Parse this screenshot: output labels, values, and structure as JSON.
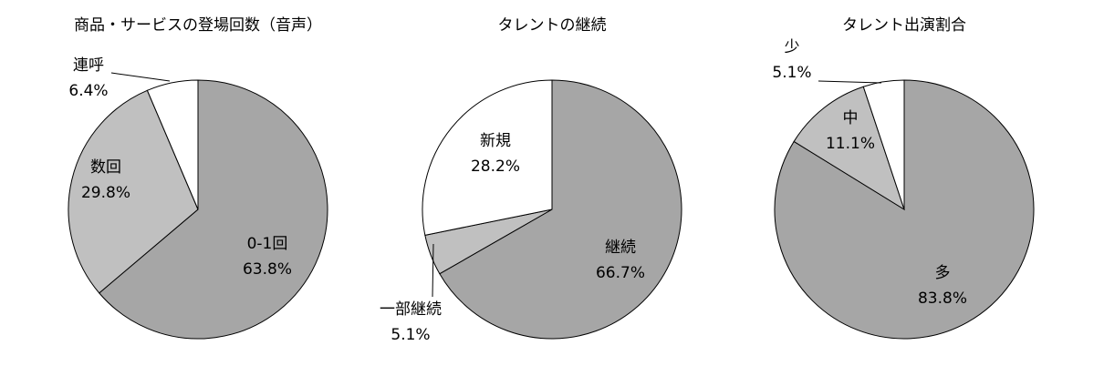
{
  "chart_data": [
    {
      "type": "pie",
      "title": "商品・サービスの登場回数（音声）",
      "categories": [
        "0-1回",
        "数回",
        "連呼"
      ],
      "values": [
        63.8,
        29.8,
        6.4
      ],
      "value_labels": [
        "63.8%",
        "29.8%",
        "6.4%"
      ],
      "colors": [
        "#a6a6a6",
        "#c0c0c0",
        "#ffffff"
      ]
    },
    {
      "type": "pie",
      "title": "タレントの継続",
      "categories": [
        "継続",
        "一部継続",
        "新規"
      ],
      "values": [
        66.7,
        5.1,
        28.2
      ],
      "value_labels": [
        "66.7%",
        "5.1%",
        "28.2%"
      ],
      "colors": [
        "#a6a6a6",
        "#c0c0c0",
        "#ffffff"
      ]
    },
    {
      "type": "pie",
      "title": "タレント出演割合",
      "categories": [
        "多",
        "中",
        "少"
      ],
      "values": [
        83.8,
        11.1,
        5.1
      ],
      "value_labels": [
        "83.8%",
        "11.1%",
        "5.1%"
      ],
      "colors": [
        "#a6a6a6",
        "#c0c0c0",
        "#ffffff"
      ]
    }
  ]
}
